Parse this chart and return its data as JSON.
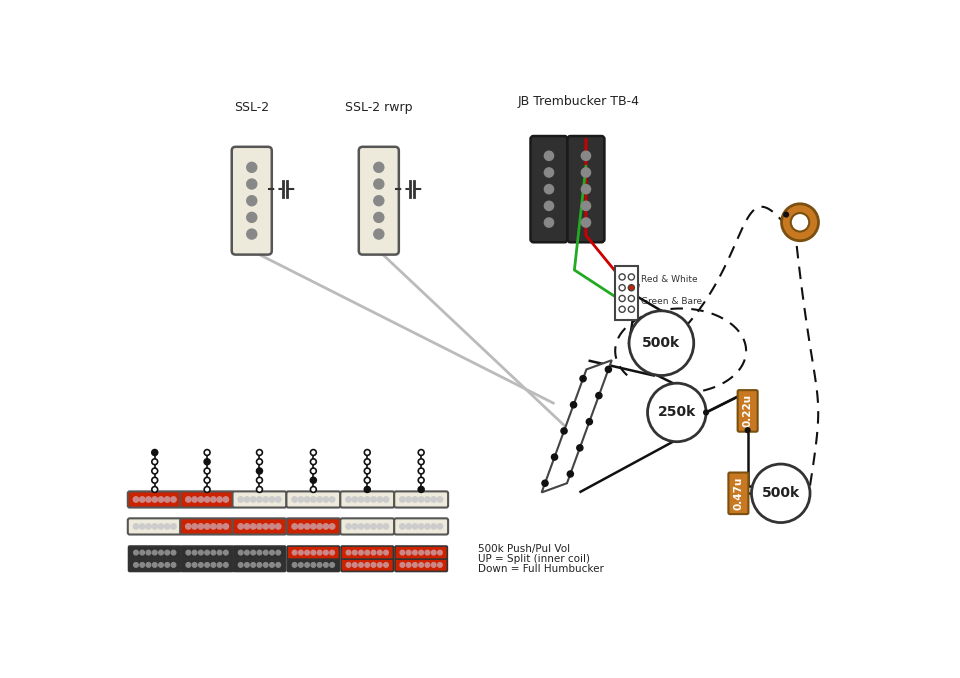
{
  "bg_color": "#ffffff",
  "pickup1_label": "SSL-2",
  "pickup2_label": "SSL-2 rwrp",
  "pickup3_label": "JB Trembucker TB-4",
  "pot1_label": "500k",
  "pot2_label": "250k",
  "pot3_label": "500k",
  "cap1_label": "0.22u",
  "cap2_label": "0.47u",
  "red_white_label": "Red & White",
  "green_bare_label": "Green & Bare",
  "legend_text": [
    "500k Push/Pul Vol",
    "UP = Split (inner coil)",
    "Down = Full Humbucker"
  ],
  "cream_color": "#edeadb",
  "black_pickup_color": "#303030",
  "pole_color": "#888888",
  "red_color": "#cc2200",
  "orange_color": "#c87820",
  "wire_gray": "#bbbbbb",
  "wire_black": "#111111"
}
